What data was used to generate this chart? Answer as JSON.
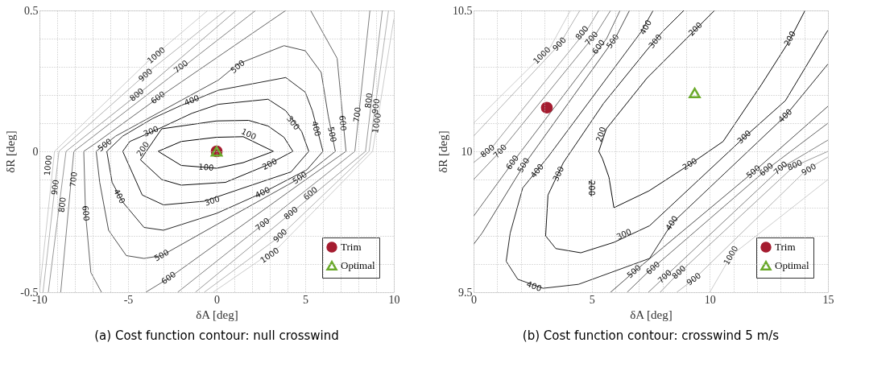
{
  "chart_data": [
    {
      "type": "line",
      "title": "(a) Cost function contour: null crosswind",
      "xlabel": "δA [deg]",
      "ylabel": "δR [deg]",
      "xlim": [
        -10,
        10
      ],
      "ylim": [
        -0.5,
        0.5
      ],
      "xticks": [
        -10,
        {
          "value": -9,
          "label": null
        },
        {
          "value": -8,
          "label": null
        },
        {
          "value": -7,
          "label": null
        },
        {
          "value": -6,
          "label": null
        },
        -5,
        {
          "value": -4,
          "label": null
        },
        {
          "value": -3,
          "label": null
        },
        {
          "value": -2,
          "label": null
        },
        {
          "value": -1,
          "label": null
        },
        0,
        {
          "value": 1,
          "label": null
        },
        {
          "value": 2,
          "label": null
        },
        {
          "value": 3,
          "label": null
        },
        {
          "value": 4,
          "label": null
        },
        5,
        {
          "value": 6,
          "label": null
        },
        {
          "value": 7,
          "label": null
        },
        {
          "value": 8,
          "label": null
        },
        {
          "value": 9,
          "label": null
        },
        10
      ],
      "yticks": [
        -0.5,
        {
          "value": -0.4,
          "label": null
        },
        {
          "value": -0.3,
          "label": null
        },
        {
          "value": -0.2,
          "label": null
        },
        {
          "value": -0.1,
          "label": null
        },
        0,
        {
          "value": 0.1,
          "label": null
        },
        {
          "value": 0.2,
          "label": null
        },
        {
          "value": 0.3,
          "label": null
        },
        {
          "value": 0.4,
          "label": null
        },
        0.5
      ],
      "grid": true,
      "legend": "bottom right",
      "series": [
        {
          "type": "line",
          "color": "#000000",
          "x": [
            -3.3,
            -2,
            0,
            1.5,
            3.2
          ],
          "values": [
            0,
            0.035,
            0.05,
            0.052,
            0
          ]
        },
        {
          "type": "line",
          "color": "#000000",
          "x": [
            3.2,
            1.5,
            0,
            -2,
            -3.3
          ],
          "values": [
            0,
            -0.04,
            -0.06,
            -0.05,
            0
          ]
        },
        {
          "type": "line",
          "color": "#0a0a0a",
          "x": [
            -4.3,
            -3.1,
            0,
            1.8,
            2.9,
            3.8,
            4.3
          ],
          "values": [
            -0.03,
            0.08,
            0.108,
            0.11,
            0.09,
            0.05,
            0
          ]
        },
        {
          "type": "line",
          "color": "#0a0a0a",
          "x": [
            4.3,
            2.8,
            0.5,
            -2,
            -3.1,
            -4.3
          ],
          "values": [
            0,
            -0.05,
            -0.11,
            -0.12,
            -0.1,
            -0.03
          ]
        },
        {
          "type": "line",
          "color": "#141414",
          "x": [
            -5.3,
            -4.9,
            -3.1,
            -1.4,
            0.1,
            2.9,
            3.9,
            4.8,
            5.2
          ],
          "values": [
            0,
            0.035,
            0.085,
            0.135,
            0.167,
            0.185,
            0.144,
            0.07,
            0
          ]
        },
        {
          "type": "line",
          "color": "#141414",
          "x": [
            5.2,
            4.2,
            1.5,
            -0.7,
            -3.0,
            -4.2,
            -5.3
          ],
          "values": [
            0,
            -0.073,
            -0.13,
            -0.177,
            -0.19,
            -0.155,
            0
          ]
        },
        {
          "type": "line",
          "color": "#262626",
          "x": [
            -6.2,
            -5.3,
            -3.6,
            -2.0,
            0.1,
            3.9,
            5.0,
            5.4,
            6.0
          ],
          "values": [
            0,
            0.054,
            0.117,
            0.163,
            0.217,
            0.262,
            0.21,
            0.144,
            0
          ]
        },
        {
          "type": "line",
          "color": "#262626",
          "x": [
            6.0,
            5.1,
            2.6,
            0,
            -3.0,
            -4.1,
            -5.3,
            -5.9,
            -6.2
          ],
          "values": [
            0,
            -0.065,
            -0.147,
            -0.22,
            -0.28,
            -0.27,
            -0.18,
            -0.11,
            0
          ]
        },
        {
          "type": "line",
          "color": "#4d4d4d",
          "x": [
            -6.8,
            -5.7,
            0.1,
            1.2,
            3.8,
            5.0,
            5.9,
            6.3,
            6.7
          ],
          "values": [
            0,
            0.054,
            0.253,
            0.31,
            0.375,
            0.357,
            0.28,
            0.125,
            0
          ]
        },
        {
          "type": "line",
          "color": "#4d4d4d",
          "x": [
            6.7,
            5.4,
            4.7,
            0,
            -3.1,
            -4.1,
            -5.1,
            -6.1,
            -6.6,
            -6.8
          ],
          "values": [
            0,
            -0.065,
            -0.095,
            -0.26,
            -0.37,
            -0.38,
            -0.37,
            -0.28,
            -0.11,
            0
          ]
        },
        {
          "type": "line",
          "color": "#666666",
          "x": [
            -6.5,
            -7.1,
            -7.4,
            -7.5,
            -6.8,
            -3.3,
            3.9
          ],
          "values": [
            -0.5,
            -0.43,
            -0.22,
            0,
            0.03,
            0.19,
            0.5
          ]
        },
        {
          "type": "line",
          "color": "#666666",
          "x": [
            5.3,
            6.8,
            7.3,
            4.7,
            -2.7,
            -4.0
          ],
          "values": [
            0.5,
            0.33,
            0,
            -0.115,
            -0.45,
            -0.5
          ]
        },
        {
          "type": "line",
          "color": "#808080",
          "x": [
            -8.8,
            -8.06,
            -2.7,
            2.2
          ],
          "values": [
            -0.5,
            0,
            0.26,
            0.5
          ]
        },
        {
          "type": "line",
          "color": "#808080",
          "x": [
            8.65,
            7.8,
            2.6,
            -2.2
          ],
          "values": [
            0.5,
            0,
            -0.26,
            -0.5
          ]
        },
        {
          "type": "line",
          "color": "#999999",
          "x": [
            -9.5,
            -8.5,
            -3.9,
            1.1
          ],
          "values": [
            -0.5,
            0,
            0.23,
            0.5
          ]
        },
        {
          "type": "line",
          "color": "#999999",
          "x": [
            9.35,
            8.4,
            3.8,
            -1.2
          ],
          "values": [
            0.5,
            0,
            -0.24,
            -0.5
          ]
        },
        {
          "type": "line",
          "color": "#b3b3b3",
          "x": [
            -9.8,
            -8.9,
            -3.8,
            0.5
          ],
          "values": [
            -0.5,
            0,
            0.285,
            0.5
          ]
        },
        {
          "type": "line",
          "color": "#b3b3b3",
          "x": [
            9.7,
            8.6,
            3.6,
            -0.7
          ],
          "values": [
            0.5,
            0,
            -0.3,
            -0.5
          ]
        },
        {
          "type": "line",
          "color": "#cccccc",
          "x": [
            -10,
            -9.15,
            -3.7,
            -0.5
          ],
          "values": [
            -0.5,
            0,
            0.33,
            0.5
          ]
        },
        {
          "type": "line",
          "color": "#cccccc",
          "x": [
            10,
            8.8,
            3.5,
            -0.2
          ],
          "values": [
            0.47,
            0,
            -0.34,
            -0.5
          ]
        },
        {
          "name": "Trim",
          "type": "scatter",
          "marker": "circle",
          "color": "#a51c30",
          "x": [
            0
          ],
          "values": [
            0
          ]
        },
        {
          "name": "Optimal",
          "type": "scatter",
          "marker": "triangle",
          "color": "#6aaa2a",
          "x": [
            0
          ],
          "values": [
            0
          ]
        }
      ],
      "annotations": [
        {
          "text": "100",
          "x": 1.8,
          "y": 0.06
        },
        {
          "text": "100",
          "x": -0.6,
          "y": -0.058
        },
        {
          "text": "200",
          "x": -4.15,
          "y": 0.008
        },
        {
          "text": "200",
          "x": 3.0,
          "y": -0.046
        },
        {
          "text": "300",
          "x": -3.7,
          "y": 0.07
        },
        {
          "text": "300",
          "x": -0.25,
          "y": -0.177
        },
        {
          "text": "300",
          "x": 4.3,
          "y": 0.1
        },
        {
          "text": "400",
          "x": -1.4,
          "y": 0.18
        },
        {
          "text": "400",
          "x": -5.5,
          "y": -0.16
        },
        {
          "text": "400",
          "x": 5.6,
          "y": 0.08
        },
        {
          "text": "400",
          "x": 2.6,
          "y": -0.147
        },
        {
          "text": "500",
          "x": -6.3,
          "y": 0.022
        },
        {
          "text": "500",
          "x": 1.2,
          "y": 0.3
        },
        {
          "text": "500",
          "x": 6.5,
          "y": 0.06
        },
        {
          "text": "500",
          "x": 4.7,
          "y": -0.095
        },
        {
          "text": "500",
          "x": -3.1,
          "y": -0.37
        },
        {
          "text": "600",
          "x": -3.3,
          "y": 0.19
        },
        {
          "text": "600",
          "x": -7.4,
          "y": -0.22
        },
        {
          "text": "600",
          "x": -2.7,
          "y": -0.45
        },
        {
          "text": "600",
          "x": 7.1,
          "y": 0.1
        },
        {
          "text": "600",
          "x": 5.3,
          "y": -0.15
        },
        {
          "text": "700",
          "x": -2.0,
          "y": 0.3
        },
        {
          "text": "700",
          "x": -8.06,
          "y": -0.1
        },
        {
          "text": "700",
          "x": 7.95,
          "y": 0.13
        },
        {
          "text": "700",
          "x": 2.6,
          "y": -0.26
        },
        {
          "text": "800",
          "x": -4.5,
          "y": 0.2
        },
        {
          "text": "800",
          "x": -8.7,
          "y": -0.19
        },
        {
          "text": "800",
          "x": 8.6,
          "y": 0.18
        },
        {
          "text": "800",
          "x": 4.2,
          "y": -0.22
        },
        {
          "text": "900",
          "x": -4.0,
          "y": 0.27
        },
        {
          "text": "900",
          "x": -9.1,
          "y": -0.128
        },
        {
          "text": "900",
          "x": 9.0,
          "y": 0.16
        },
        {
          "text": "900",
          "x": 3.6,
          "y": -0.3
        },
        {
          "text": "1000",
          "x": -3.4,
          "y": 0.34
        },
        {
          "text": "1000",
          "x": -9.5,
          "y": -0.05
        },
        {
          "text": "1000",
          "x": 9.05,
          "y": 0.1
        },
        {
          "text": "1000",
          "x": 3.0,
          "y": -0.37
        }
      ]
    },
    {
      "type": "line",
      "title": "(b) Cost function contour: crosswind 5 m/s",
      "xlabel": "δA [deg]",
      "ylabel": "δR [deg]",
      "xlim": [
        0,
        15
      ],
      "ylim": [
        9.5,
        10.5
      ],
      "xticks": [
        0,
        {
          "value": 1,
          "label": null
        },
        {
          "value": 2,
          "label": null
        },
        {
          "value": 3,
          "label": null
        },
        {
          "value": 4,
          "label": null
        },
        5,
        {
          "value": 6,
          "label": null
        },
        {
          "value": 7,
          "label": null
        },
        {
          "value": 8,
          "label": null
        },
        {
          "value": 9,
          "label": null
        },
        10,
        {
          "value": 11,
          "label": null
        },
        {
          "value": 12,
          "label": null
        },
        {
          "value": 13,
          "label": null
        },
        {
          "value": 14,
          "label": null
        },
        15
      ],
      "yticks": [
        9.5,
        {
          "value": 9.6,
          "label": null
        },
        {
          "value": 9.7,
          "label": null
        },
        {
          "value": 9.8,
          "label": null
        },
        {
          "value": 9.9,
          "label": null
        },
        10,
        {
          "value": 10.1,
          "label": null
        },
        {
          "value": 10.2,
          "label": null
        },
        {
          "value": 10.3,
          "label": null
        },
        {
          "value": 10.4,
          "label": null
        },
        10.5
      ],
      "grid": true,
      "legend": "bottom right",
      "series": [
        {
          "type": "line",
          "color": "#0a0a0a",
          "x": [
            10.2,
            7.34,
            5.62,
            5.3,
            5.46,
            5.73,
            5.94,
            7.43,
            9.16,
            10.56,
            12.17,
            13.35,
            14.03
          ],
          "values": [
            10.5,
            10.26,
            10.08,
            10.0,
            9.973,
            9.908,
            9.8,
            9.86,
            9.954,
            10.035,
            10.235,
            10.39,
            10.5
          ]
        },
        {
          "type": "line",
          "color": "#0a0a0a",
          "x": [
            4.98,
            4.98
          ],
          "values": [
            9.9,
            9.84
          ]
        },
        {
          "type": "line",
          "color": "#141414",
          "x": [
            8.9,
            8.0,
            7.34,
            5.5,
            3.8,
            3.15,
            3.05,
            3.48,
            4.54,
            5.94,
            7.45,
            11.46,
            13.2,
            14.85,
            15
          ],
          "values": [
            10.5,
            10.425,
            10.36,
            10.17,
            9.96,
            9.845,
            9.7,
            9.655,
            9.64,
            9.677,
            9.736,
            10.05,
            10.18,
            10.41,
            10.43
          ]
        },
        {
          "type": "line",
          "color": "#262626",
          "x": [
            7.6,
            7.1,
            3.15,
            2.08,
            1.55,
            1.38,
            1.87,
            2.94,
            4.44,
            7.45,
            8.4,
            13.2,
            15
          ],
          "values": [
            10.5,
            10.425,
            9.98,
            9.87,
            9.71,
            9.61,
            9.546,
            9.514,
            9.528,
            9.62,
            9.745,
            10.126,
            10.31
          ]
        },
        {
          "type": "line",
          "color": "#4d4d4d",
          "x": [
            0,
            0.36,
            2.12,
            6.05,
            6.6
          ],
          "values": [
            9.67,
            9.71,
            9.95,
            10.41,
            10.5
          ]
        },
        {
          "type": "line",
          "color": "#4d4d4d",
          "x": [
            5.8,
            6.8,
            11.85,
            15
          ],
          "values": [
            9.5,
            9.573,
            9.927,
            10.16
          ]
        },
        {
          "type": "line",
          "color": "#666666",
          "x": [
            0,
            1.65,
            5.63,
            6.2
          ],
          "values": [
            9.77,
            9.96,
            10.4,
            10.5
          ]
        },
        {
          "type": "line",
          "color": "#666666",
          "x": [
            6.5,
            7.3,
            12.4,
            15
          ],
          "values": [
            9.5,
            9.565,
            9.935,
            10.1
          ]
        },
        {
          "type": "line",
          "color": "#808080",
          "x": [
            0,
            1.13,
            5.2,
            5.8
          ],
          "values": [
            9.9,
            10.0,
            10.42,
            10.5
          ]
        },
        {
          "type": "line",
          "color": "#808080",
          "x": [
            7.4,
            8.1,
            13.0,
            15
          ],
          "values": [
            9.5,
            9.555,
            9.94,
            10.04
          ]
        },
        {
          "type": "line",
          "color": "#999999",
          "x": [
            0,
            0.74,
            4.87,
            5.3
          ],
          "values": [
            9.96,
            10.01,
            10.44,
            10.5
          ]
        },
        {
          "type": "line",
          "color": "#999999",
          "x": [
            7.9,
            8.53,
            13.55,
            15
          ],
          "values": [
            9.5,
            9.555,
            9.946,
            10.0
          ]
        },
        {
          "type": "line",
          "color": "#b3b3b3",
          "x": [
            0,
            3.64,
            4.5
          ],
          "values": [
            10.054,
            10.38,
            10.5
          ]
        },
        {
          "type": "line",
          "color": "#b3b3b3",
          "x": [
            8.6,
            9.33,
            14.1,
            15
          ],
          "values": [
            9.5,
            9.546,
            9.935,
            9.98
          ]
        },
        {
          "type": "line",
          "color": "#cccccc",
          "x": [
            0,
            3.25,
            4.1
          ],
          "values": [
            10.1,
            10.37,
            10.5
          ]
        },
        {
          "type": "line",
          "color": "#cccccc",
          "x": [
            10.0,
            10.9,
            15
          ],
          "values": [
            9.5,
            9.63,
            9.9
          ]
        },
        {
          "name": "Trim",
          "type": "scatter",
          "marker": "circle",
          "color": "#a51c30",
          "x": [
            3.1
          ],
          "values": [
            10.155
          ]
        },
        {
          "name": "Optimal",
          "type": "scatter",
          "marker": "triangle",
          "color": "#6aaa2a",
          "x": [
            9.36
          ],
          "values": [
            10.207
          ]
        }
      ],
      "annotations": [
        {
          "text": "200",
          "x": 9.4,
          "y": 10.433
        },
        {
          "text": "200",
          "x": 5.4,
          "y": 10.06
        },
        {
          "text": "200",
          "x": 4.98,
          "y": 9.87
        },
        {
          "text": "200",
          "x": 9.16,
          "y": 9.954
        },
        {
          "text": "200",
          "x": 13.4,
          "y": 10.4
        },
        {
          "text": "300",
          "x": 7.7,
          "y": 10.39
        },
        {
          "text": "300",
          "x": 3.6,
          "y": 9.92
        },
        {
          "text": "300",
          "x": 6.37,
          "y": 9.705
        },
        {
          "text": "300",
          "x": 11.46,
          "y": 10.05
        },
        {
          "text": "400",
          "x": 7.3,
          "y": 10.44
        },
        {
          "text": "400",
          "x": 2.7,
          "y": 9.93
        },
        {
          "text": "400",
          "x": 2.56,
          "y": 9.52
        },
        {
          "text": "400",
          "x": 8.4,
          "y": 9.745
        },
        {
          "text": "400",
          "x": 13.2,
          "y": 10.126
        },
        {
          "text": "500",
          "x": 5.9,
          "y": 10.39
        },
        {
          "text": "500",
          "x": 2.12,
          "y": 9.95
        },
        {
          "text": "500",
          "x": 6.8,
          "y": 9.573
        },
        {
          "text": "500",
          "x": 11.85,
          "y": 9.927
        },
        {
          "text": "600",
          "x": 5.3,
          "y": 10.37
        },
        {
          "text": "600",
          "x": 1.65,
          "y": 9.96
        },
        {
          "text": "600",
          "x": 7.6,
          "y": 9.585
        },
        {
          "text": "600",
          "x": 12.4,
          "y": 9.935
        },
        {
          "text": "700",
          "x": 5.0,
          "y": 10.4
        },
        {
          "text": "700",
          "x": 1.13,
          "y": 10.0
        },
        {
          "text": "700",
          "x": 8.1,
          "y": 9.555
        },
        {
          "text": "700",
          "x": 13.0,
          "y": 9.94
        },
        {
          "text": "800",
          "x": 4.6,
          "y": 10.42
        },
        {
          "text": "800",
          "x": 0.6,
          "y": 10.0
        },
        {
          "text": "800",
          "x": 8.7,
          "y": 9.57
        },
        {
          "text": "800",
          "x": 13.6,
          "y": 9.95
        },
        {
          "text": "900",
          "x": 3.64,
          "y": 10.38
        },
        {
          "text": "900",
          "x": 9.33,
          "y": 9.546
        },
        {
          "text": "900",
          "x": 14.2,
          "y": 9.935
        },
        {
          "text": "1000",
          "x": 2.9,
          "y": 10.34
        },
        {
          "text": "1000",
          "x": 10.9,
          "y": 9.63
        }
      ]
    }
  ]
}
